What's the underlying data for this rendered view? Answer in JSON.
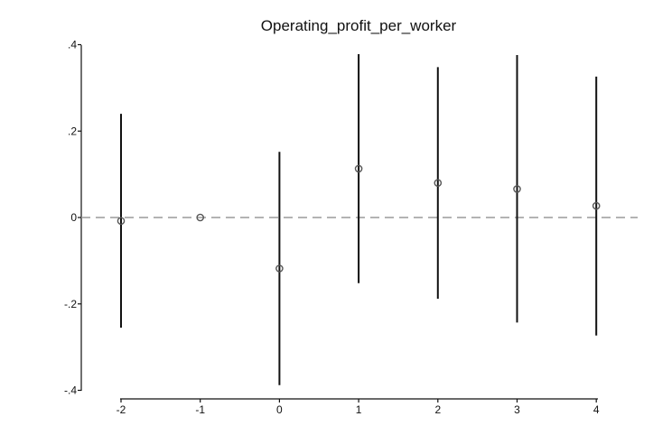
{
  "chart_data": {
    "type": "scatter",
    "title": "Operating_profit_per_worker",
    "xlabel": "",
    "ylabel": "",
    "x_ticks": [
      -2,
      -1,
      0,
      1,
      2,
      3,
      4
    ],
    "x_tick_labels": [
      "-2",
      "-1",
      "0",
      "1",
      "2",
      "3",
      "4"
    ],
    "y_ticks": [
      -0.4,
      -0.2,
      0,
      0.2,
      0.4
    ],
    "y_tick_labels": [
      "-.4",
      "-.2",
      "0",
      ".2",
      ".4"
    ],
    "ylim": [
      -0.4,
      0.4
    ],
    "xlim": [
      -2.5,
      4.5
    ],
    "grid": false,
    "reference_line": {
      "y": 0,
      "style": "dashed",
      "color": "#9a9a9a"
    },
    "points": [
      {
        "x": -2,
        "y": -0.008,
        "ci_low": -0.255,
        "ci_high": 0.24
      },
      {
        "x": -1,
        "y": 0.0,
        "ci_low": null,
        "ci_high": null
      },
      {
        "x": 0,
        "y": -0.118,
        "ci_low": -0.388,
        "ci_high": 0.152
      },
      {
        "x": 1,
        "y": 0.113,
        "ci_low": -0.152,
        "ci_high": 0.378
      },
      {
        "x": 2,
        "y": 0.08,
        "ci_low": -0.188,
        "ci_high": 0.348
      },
      {
        "x": 3,
        "y": 0.066,
        "ci_low": -0.243,
        "ci_high": 0.376
      },
      {
        "x": 4,
        "y": 0.027,
        "ci_low": -0.273,
        "ci_high": 0.326
      }
    ],
    "colors": {
      "ci": "#111111",
      "marker": "#555555"
    }
  }
}
